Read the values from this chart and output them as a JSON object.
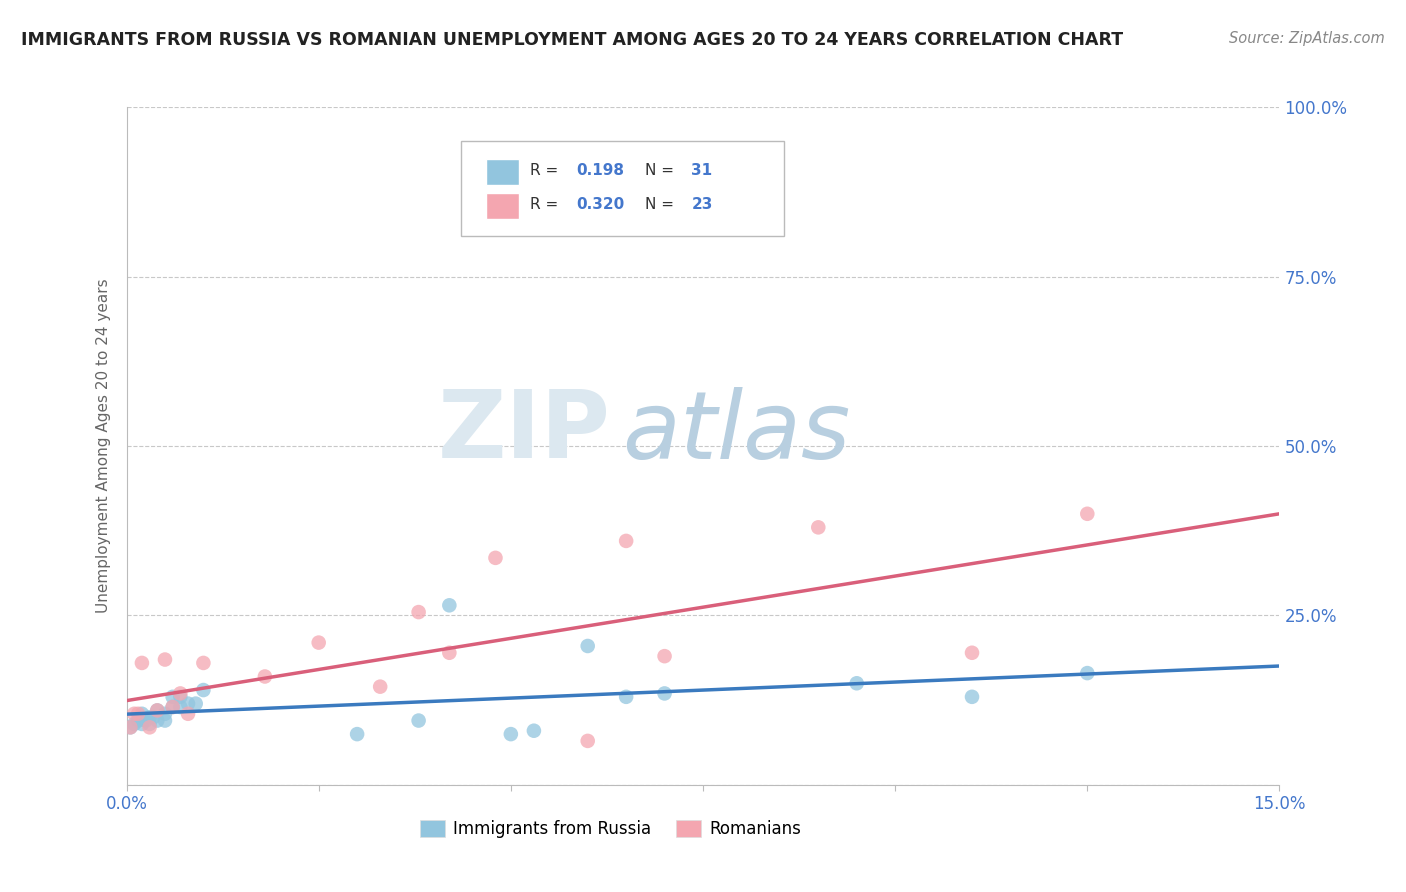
{
  "title": "IMMIGRANTS FROM RUSSIA VS ROMANIAN UNEMPLOYMENT AMONG AGES 20 TO 24 YEARS CORRELATION CHART",
  "source": "Source: ZipAtlas.com",
  "ylabel": "Unemployment Among Ages 20 to 24 years",
  "xlim": [
    0.0,
    0.15
  ],
  "ylim": [
    0.0,
    1.0
  ],
  "yticks": [
    0.0,
    0.25,
    0.5,
    0.75,
    1.0
  ],
  "ytick_labels": [
    "",
    "25.0%",
    "50.0%",
    "75.0%",
    "100.0%"
  ],
  "xticks": [
    0.0,
    0.025,
    0.05,
    0.075,
    0.1,
    0.125,
    0.15
  ],
  "xtick_labels": [
    "0.0%",
    "",
    "",
    "",
    "",
    "",
    "15.0%"
  ],
  "blue_r": "0.198",
  "blue_n": "31",
  "pink_r": "0.320",
  "pink_n": "23",
  "blue_color": "#92c5de",
  "pink_color": "#f4a6b0",
  "blue_line_color": "#3a7abf",
  "pink_line_color": "#d95f7a",
  "background_color": "#ffffff",
  "grid_color": "#c8c8c8",
  "title_color": "#222222",
  "axis_color": "#bbbbbb",
  "value_color": "#4477cc",
  "blue_points_x": [
    0.0005,
    0.001,
    0.0015,
    0.002,
    0.002,
    0.0025,
    0.003,
    0.003,
    0.0035,
    0.004,
    0.004,
    0.005,
    0.005,
    0.006,
    0.006,
    0.007,
    0.007,
    0.008,
    0.009,
    0.01,
    0.03,
    0.038,
    0.042,
    0.05,
    0.053,
    0.06,
    0.065,
    0.07,
    0.095,
    0.11,
    0.125
  ],
  "blue_points_y": [
    0.085,
    0.09,
    0.095,
    0.09,
    0.105,
    0.095,
    0.09,
    0.1,
    0.1,
    0.095,
    0.11,
    0.105,
    0.095,
    0.13,
    0.115,
    0.115,
    0.13,
    0.12,
    0.12,
    0.14,
    0.075,
    0.095,
    0.265,
    0.075,
    0.08,
    0.205,
    0.13,
    0.135,
    0.15,
    0.13,
    0.165
  ],
  "pink_points_x": [
    0.0005,
    0.001,
    0.0015,
    0.002,
    0.003,
    0.004,
    0.005,
    0.006,
    0.007,
    0.008,
    0.01,
    0.018,
    0.025,
    0.033,
    0.038,
    0.042,
    0.048,
    0.06,
    0.065,
    0.07,
    0.09,
    0.11,
    0.125
  ],
  "pink_points_y": [
    0.085,
    0.105,
    0.105,
    0.18,
    0.085,
    0.11,
    0.185,
    0.115,
    0.135,
    0.105,
    0.18,
    0.16,
    0.21,
    0.145,
    0.255,
    0.195,
    0.335,
    0.065,
    0.36,
    0.19,
    0.38,
    0.195,
    0.4
  ],
  "watermark_zip": "ZIP",
  "watermark_atlas": "atlas",
  "watermark_color_zip": "#dce8f0",
  "watermark_color_atlas": "#b8cfe0",
  "figsize": [
    14.06,
    8.92
  ],
  "dpi": 100
}
